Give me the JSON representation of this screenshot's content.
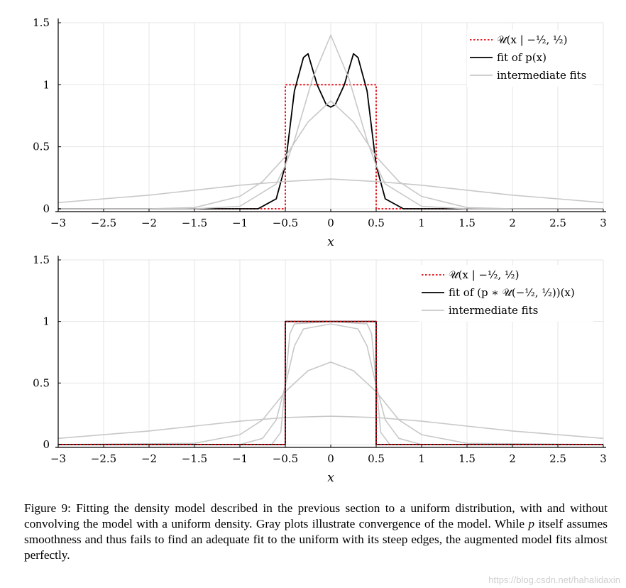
{
  "chart_data": [
    {
      "type": "line",
      "xlabel": "x",
      "xlim": [
        -3,
        3
      ],
      "ylim": [
        0,
        1.5
      ],
      "xticks": [
        -3,
        -2.5,
        -2,
        -1.5,
        -1,
        -0.5,
        0,
        0.5,
        1,
        1.5,
        2,
        2.5,
        3
      ],
      "xtick_labels": [
        "−3",
        "−2.5",
        "−2",
        "−1.5",
        "−1",
        "−0.5",
        "0",
        "0.5",
        "1",
        "1.5",
        "2",
        "2.5",
        "3"
      ],
      "yticks": [
        0,
        0.5,
        1,
        1.5
      ],
      "ytick_labels": [
        "0",
        "0.5",
        "1",
        "1.5"
      ],
      "grid": true,
      "legend_position": "top-right",
      "legend": [
        {
          "label": "𝒰(x | −½, ½)",
          "style": "dotted",
          "color": "#e8000b"
        },
        {
          "label": "fit of p(x)",
          "style": "solid",
          "color": "#000000"
        },
        {
          "label": "intermediate fits",
          "style": "solid",
          "color": "#c8c8c8"
        }
      ],
      "series": [
        {
          "name": "𝒰(x | −½, ½)",
          "color": "#e8000b",
          "style": "dotted",
          "x": [
            -3,
            -0.5,
            -0.5,
            0.5,
            0.5,
            3
          ],
          "y": [
            0,
            0,
            1,
            1,
            0,
            0
          ]
        },
        {
          "name": "fit of p(x)",
          "color": "#000000",
          "style": "solid",
          "x": [
            -3,
            -0.8,
            -0.6,
            -0.5,
            -0.4,
            -0.3,
            -0.25,
            -0.15,
            -0.05,
            0,
            0.05,
            0.15,
            0.25,
            0.3,
            0.4,
            0.5,
            0.6,
            0.8,
            3
          ],
          "y": [
            0,
            0,
            0.08,
            0.35,
            0.95,
            1.22,
            1.25,
            1.0,
            0.84,
            0.82,
            0.84,
            1.0,
            1.25,
            1.22,
            0.95,
            0.35,
            0.08,
            0,
            0
          ]
        },
        {
          "name": "intermediate fits",
          "color": "#c8c8c8",
          "style": "solid",
          "x": [
            -3,
            -1.5,
            -1,
            -0.6,
            -0.5,
            -0.4,
            -0.2,
            0,
            0.2,
            0.4,
            0.5,
            0.6,
            1,
            1.5,
            3
          ],
          "y": [
            0,
            0,
            0.02,
            0.2,
            0.35,
            0.55,
            1.05,
            1.4,
            1.05,
            0.55,
            0.35,
            0.2,
            0.02,
            0,
            0
          ]
        },
        {
          "name": "intermediate fits",
          "color": "#c8c8c8",
          "style": "solid",
          "x": [
            -3,
            -2,
            -1.5,
            -1,
            -0.75,
            -0.5,
            -0.25,
            0,
            0.25,
            0.5,
            0.75,
            1,
            1.5,
            2,
            3
          ],
          "y": [
            0,
            0,
            0.01,
            0.1,
            0.22,
            0.42,
            0.7,
            0.87,
            0.7,
            0.42,
            0.22,
            0.1,
            0.01,
            0,
            0
          ]
        },
        {
          "name": "intermediate fits",
          "color": "#c8c8c8",
          "style": "solid",
          "x": [
            -3,
            -2.5,
            -2,
            -1.5,
            -1,
            -0.5,
            0,
            0.5,
            1,
            1.5,
            2,
            2.5,
            3
          ],
          "y": [
            0.05,
            0.08,
            0.11,
            0.15,
            0.19,
            0.22,
            0.24,
            0.22,
            0.19,
            0.15,
            0.11,
            0.08,
            0.05
          ]
        }
      ]
    },
    {
      "type": "line",
      "xlabel": "x",
      "xlim": [
        -3,
        3
      ],
      "ylim": [
        0,
        1.5
      ],
      "xticks": [
        -3,
        -2.5,
        -2,
        -1.5,
        -1,
        -0.5,
        0,
        0.5,
        1,
        1.5,
        2,
        2.5,
        3
      ],
      "xtick_labels": [
        "−3",
        "−2.5",
        "−2",
        "−1.5",
        "−1",
        "−0.5",
        "0",
        "0.5",
        "1",
        "1.5",
        "2",
        "2.5",
        "3"
      ],
      "yticks": [
        0,
        0.5,
        1,
        1.5
      ],
      "ytick_labels": [
        "0",
        "0.5",
        "1",
        "1.5"
      ],
      "grid": true,
      "legend_position": "top-right",
      "legend": [
        {
          "label": "𝒰(x | −½, ½)",
          "style": "dotted",
          "color": "#e8000b"
        },
        {
          "label": "fit of (p ∗ 𝒰(−½, ½))(x)",
          "style": "solid",
          "color": "#000000"
        },
        {
          "label": "intermediate fits",
          "style": "solid",
          "color": "#c8c8c8"
        }
      ],
      "series": [
        {
          "name": "intermediate fits",
          "color": "#c8c8c8",
          "style": "solid",
          "x": [
            -3,
            -2.5,
            -2,
            -1.5,
            -1,
            -0.5,
            0,
            0.5,
            1,
            1.5,
            2,
            2.5,
            3
          ],
          "y": [
            0.05,
            0.08,
            0.11,
            0.15,
            0.19,
            0.22,
            0.23,
            0.22,
            0.19,
            0.15,
            0.11,
            0.08,
            0.05
          ]
        },
        {
          "name": "intermediate fits",
          "color": "#c8c8c8",
          "style": "solid",
          "x": [
            -3,
            -1.5,
            -1,
            -0.75,
            -0.5,
            -0.25,
            0,
            0.25,
            0.5,
            0.75,
            1,
            1.5,
            3
          ],
          "y": [
            0,
            0.01,
            0.08,
            0.2,
            0.43,
            0.6,
            0.67,
            0.6,
            0.43,
            0.2,
            0.08,
            0.01,
            0
          ]
        },
        {
          "name": "intermediate fits",
          "color": "#c8c8c8",
          "style": "solid",
          "x": [
            -3,
            -1,
            -0.75,
            -0.6,
            -0.5,
            -0.4,
            -0.3,
            0,
            0.3,
            0.4,
            0.5,
            0.6,
            0.75,
            1,
            3
          ],
          "y": [
            0,
            0,
            0.05,
            0.2,
            0.48,
            0.8,
            0.94,
            0.98,
            0.94,
            0.8,
            0.48,
            0.2,
            0.05,
            0,
            0
          ]
        },
        {
          "name": "intermediate fits",
          "color": "#c8c8c8",
          "style": "solid",
          "x": [
            -3,
            -0.65,
            -0.55,
            -0.5,
            -0.45,
            -0.4,
            0,
            0.4,
            0.45,
            0.5,
            0.55,
            0.65,
            3
          ],
          "y": [
            0,
            0,
            0.1,
            0.5,
            0.9,
            0.98,
            1.0,
            0.98,
            0.9,
            0.5,
            0.1,
            0,
            0
          ]
        },
        {
          "name": "fit of (p ∗ 𝒰(−½, ½))(x)",
          "color": "#000000",
          "style": "solid",
          "x": [
            -3,
            -0.5,
            -0.5,
            0.5,
            0.5,
            3
          ],
          "y": [
            0,
            0,
            1,
            1,
            0,
            0
          ]
        },
        {
          "name": "𝒰(x | −½, ½)",
          "color": "#e8000b",
          "style": "dotted",
          "x": [
            -3,
            -0.5,
            -0.5,
            0.5,
            0.5,
            3
          ],
          "y": [
            0,
            0,
            1,
            1,
            0,
            0
          ]
        }
      ]
    }
  ],
  "caption": {
    "label": "Figure 9:",
    "text_a": "Fitting the density model described in the previous section to a uniform distribution, with and without convolving the model with a uniform density. Gray plots illustrate convergence of the model. While",
    "math_p": "p",
    "text_b": "itself assumes smoothness and thus fails to find an adequate fit to the uniform with its steep edges, the augmented model fits almost perfectly."
  },
  "watermark": "https://blog.csdn.net/hahalidaxin"
}
